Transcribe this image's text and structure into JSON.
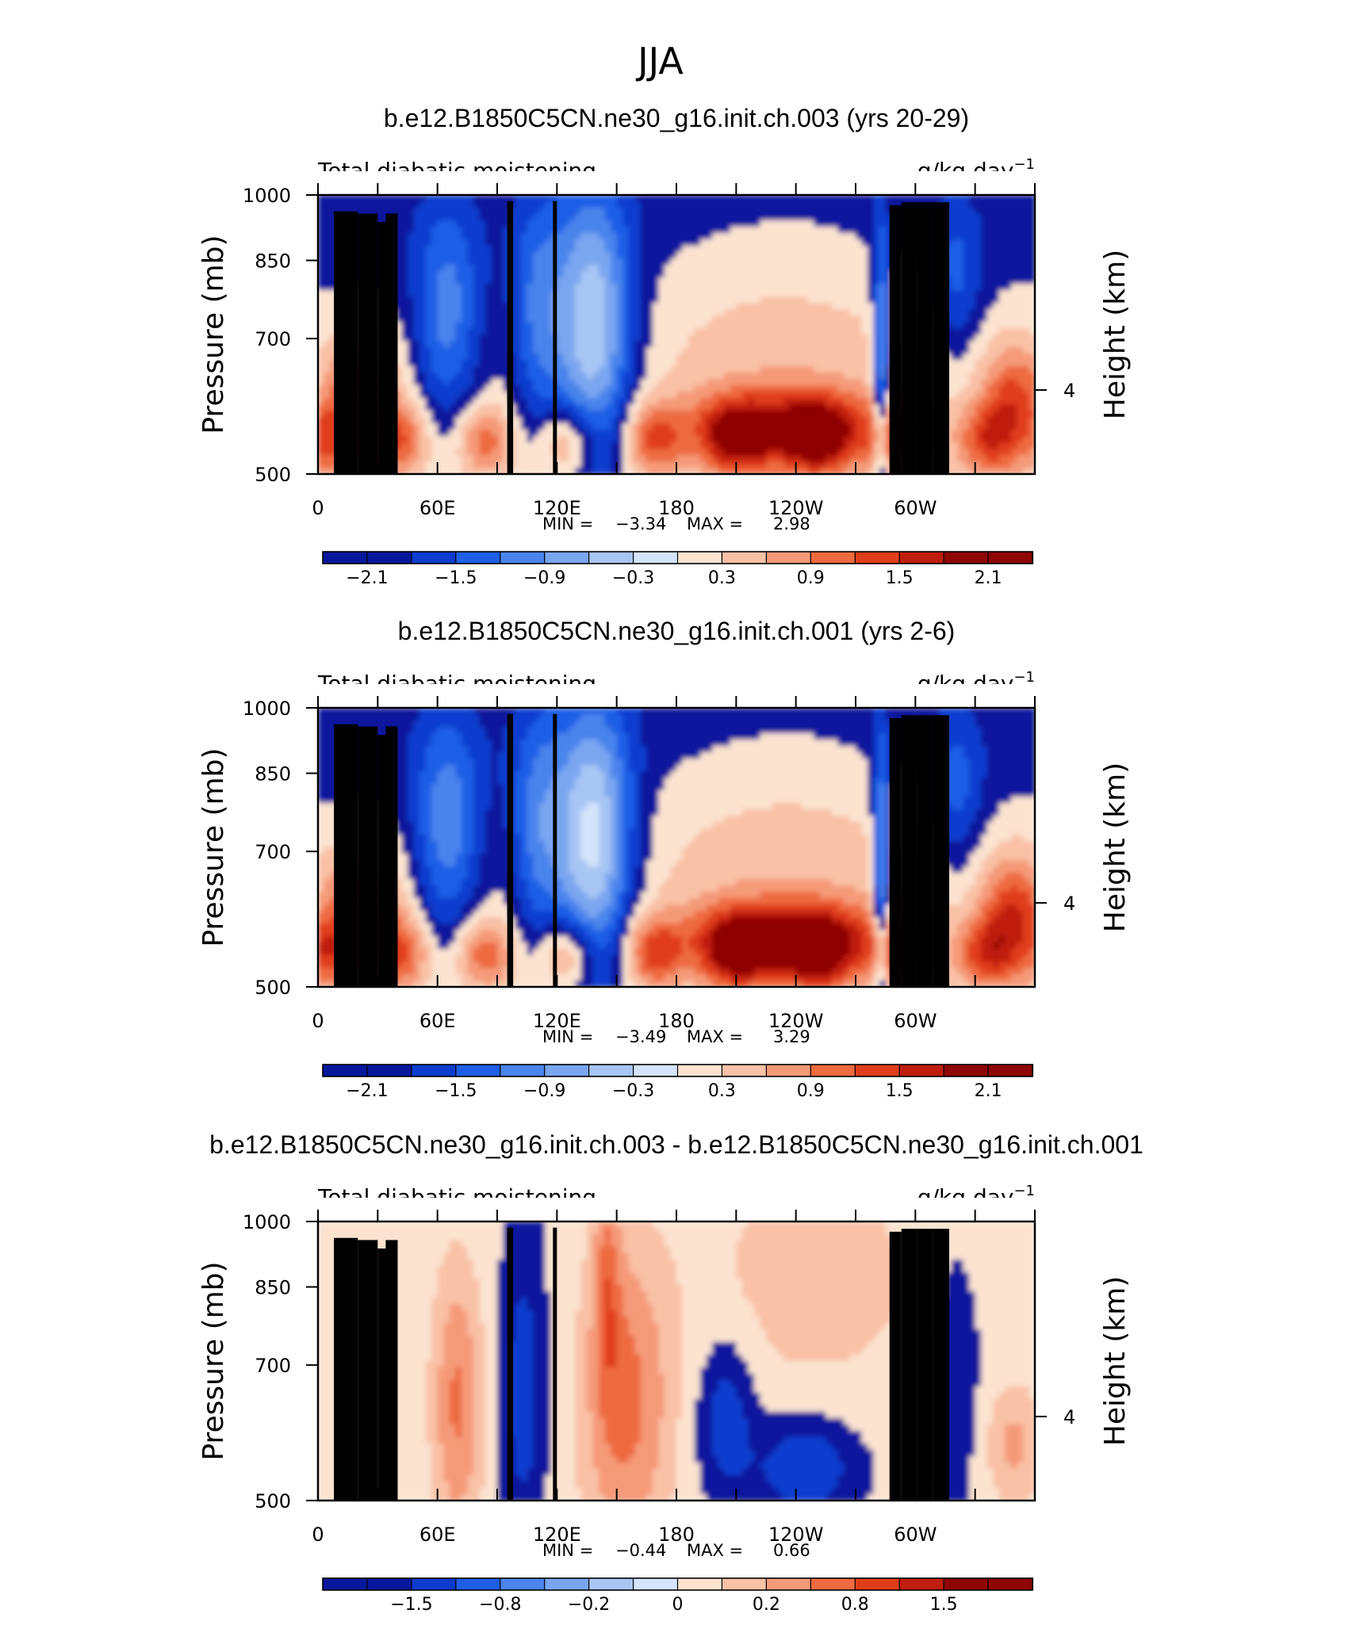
{
  "figure": {
    "title": "JJA"
  },
  "colors": {
    "blues": [
      "#08189c",
      "#0d3ccf",
      "#1f5fe6",
      "#4a84ec",
      "#7aa6f0",
      "#a8c6f4",
      "#d4e4fa"
    ],
    "reds": [
      "#fbe3d0",
      "#f9c1a6",
      "#f59a78",
      "#ee6a3f",
      "#e03e1a",
      "#bf1e0e",
      "#8e0606"
    ],
    "topography": "#000000"
  },
  "chart_data": [
    {
      "type": "heatmap",
      "title": "b.e12.B1850C5CN.ne30_g16.init.ch.003 (yrs 20-29)",
      "left_label": "Total diabatic moistening",
      "units": "g/kg day",
      "units_exp": "−1",
      "ylabel": "Pressure (mb)",
      "ylabel_right": "Height (km)",
      "x_ticks": [
        "0",
        "60E",
        "120E",
        "180",
        "120W",
        "60W"
      ],
      "y_ticks": [
        "500",
        "700",
        "850",
        "1000"
      ],
      "right_ticks": [
        "4"
      ],
      "y_scale": "log-pressure",
      "ylim": [
        1000,
        500
      ],
      "stats": {
        "min_label": "MIN =",
        "min": "−3.34",
        "max_label": "MAX =",
        "max": "2.98"
      },
      "colorbar_labels": [
        "−2.1",
        "−1.5",
        "−0.9",
        "−0.3",
        "0.3",
        "0.9",
        "1.5",
        "2.1"
      ]
    },
    {
      "type": "heatmap",
      "title": "b.e12.B1850C5CN.ne30_g16.init.ch.001 (yrs 2-6)",
      "left_label": "Total diabatic moistening",
      "units": "g/kg day",
      "units_exp": "−1",
      "ylabel": "Pressure (mb)",
      "ylabel_right": "Height (km)",
      "x_ticks": [
        "0",
        "60E",
        "120E",
        "180",
        "120W",
        "60W"
      ],
      "y_ticks": [
        "500",
        "700",
        "850",
        "1000"
      ],
      "right_ticks": [
        "4"
      ],
      "y_scale": "log-pressure",
      "ylim": [
        1000,
        500
      ],
      "stats": {
        "min_label": "MIN =",
        "min": "−3.49",
        "max_label": "MAX =",
        "max": "3.29"
      },
      "colorbar_labels": [
        "−2.1",
        "−1.5",
        "−0.9",
        "−0.3",
        "0.3",
        "0.9",
        "1.5",
        "2.1"
      ]
    },
    {
      "type": "heatmap",
      "title": "b.e12.B1850C5CN.ne30_g16.init.ch.003 - b.e12.B1850C5CN.ne30_g16.init.ch.001",
      "left_label": "Total diabatic moistening",
      "units": "g/kg day",
      "units_exp": "−1",
      "ylabel": "Pressure (mb)",
      "ylabel_right": "Height (km)",
      "x_ticks": [
        "0",
        "60E",
        "120E",
        "180",
        "120W",
        "60W"
      ],
      "y_ticks": [
        "500",
        "700",
        "850",
        "1000"
      ],
      "right_ticks": [
        "4"
      ],
      "y_scale": "log-pressure",
      "ylim": [
        1000,
        500
      ],
      "stats": {
        "min_label": "MIN =",
        "min": "−0.44",
        "max_label": "MAX =",
        "max": "0.66"
      },
      "colorbar_labels": [
        "−1.5",
        "−0.8",
        "−0.2",
        "0",
        "0.2",
        "0.8",
        "1.5"
      ]
    }
  ]
}
